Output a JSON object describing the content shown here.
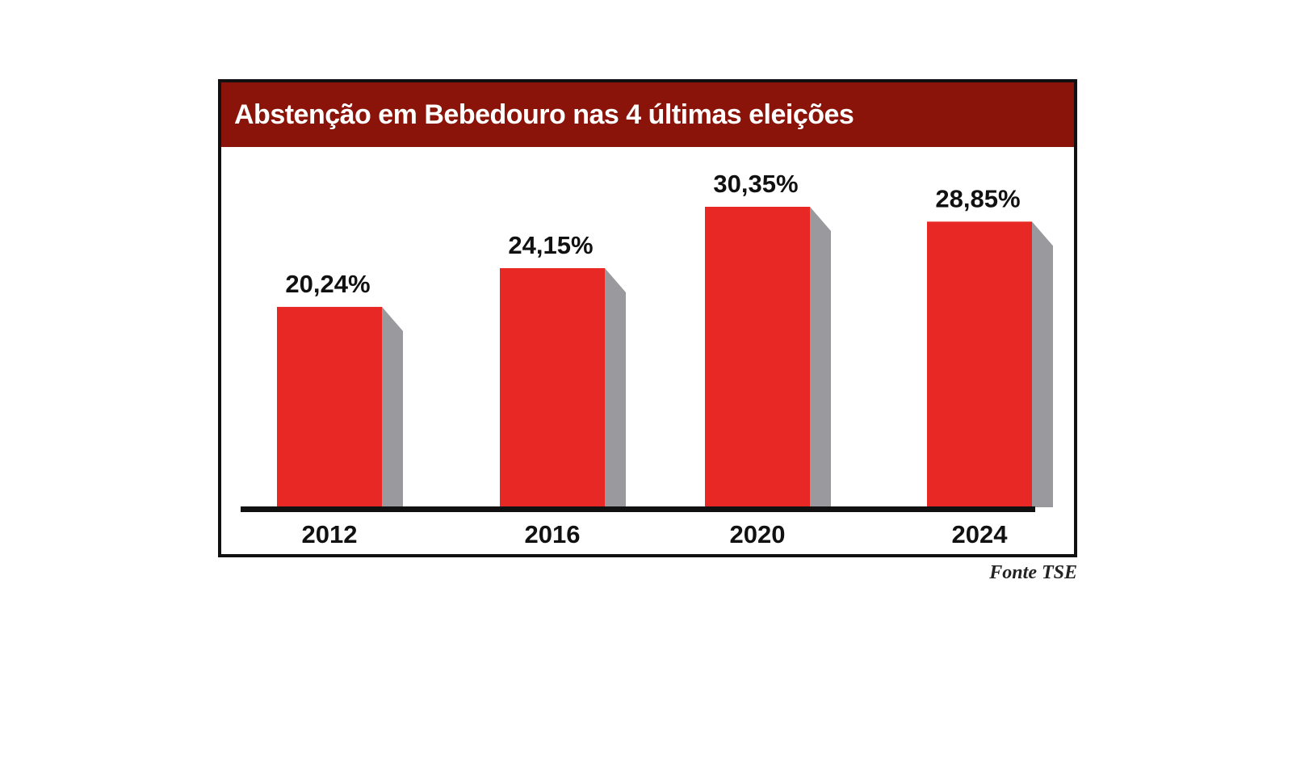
{
  "chart_data": {
    "type": "bar",
    "title": "Abstenção em Bebedouro nas 4 últimas eleições",
    "categories": [
      "2012",
      "2016",
      "2020",
      "2024"
    ],
    "values": [
      20.24,
      24.15,
      30.35,
      28.85
    ],
    "value_labels": [
      "20,24%",
      "24,15%",
      "30,35%",
      "28,85%"
    ],
    "ylim": [
      0,
      30.35
    ],
    "grid": false,
    "legend": "none",
    "source": "Fonte TSE"
  },
  "colors": {
    "title_bg": "#8a1409",
    "bar": "#e82825",
    "bar_side": "#9a9a9e",
    "baseline": "#111111"
  }
}
